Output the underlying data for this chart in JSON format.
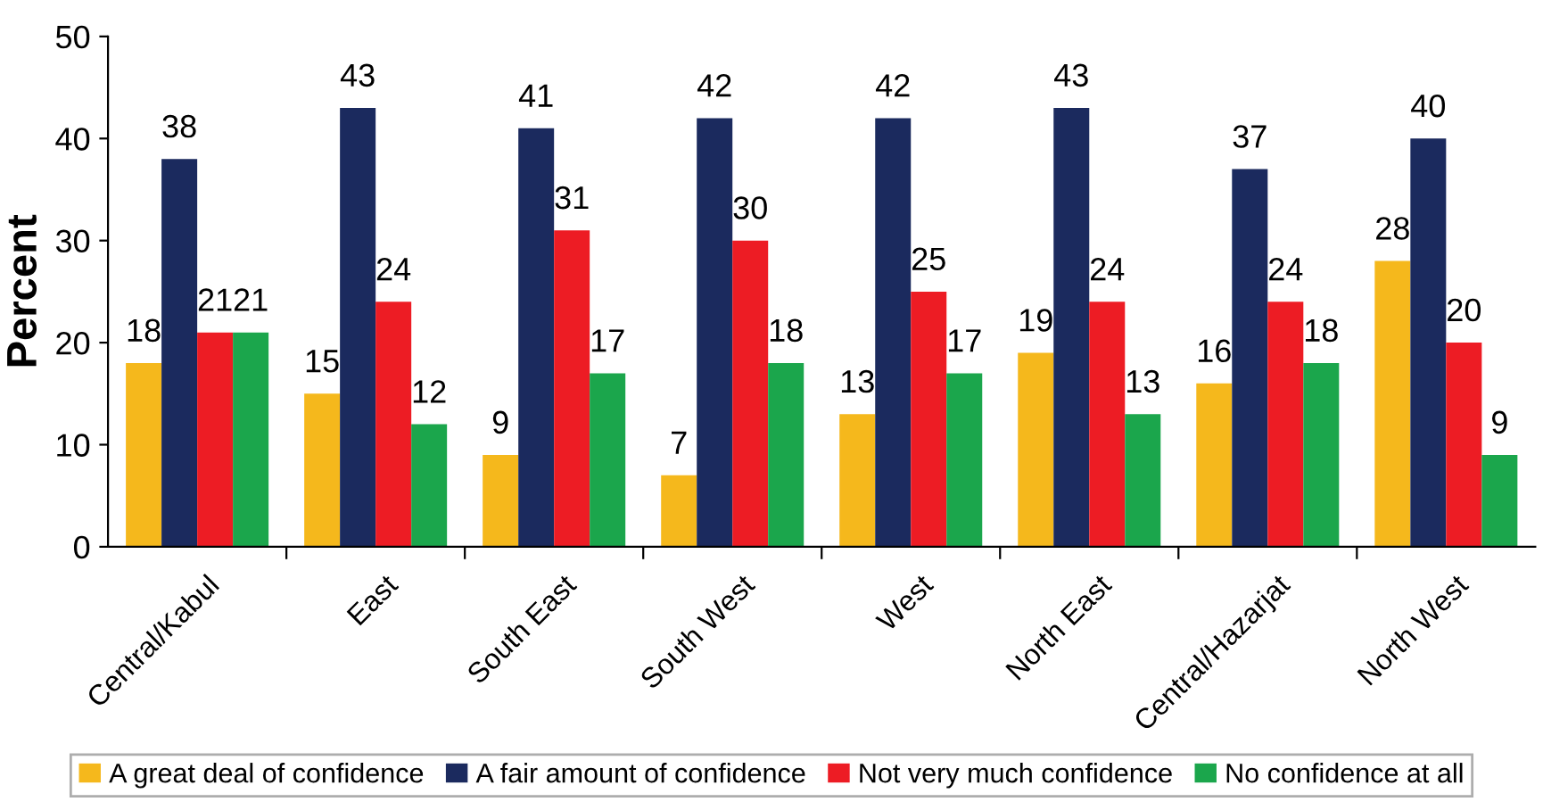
{
  "chart_data": {
    "type": "bar",
    "ylabel": "Percent",
    "categories": [
      "Central/Kabul",
      "East",
      "South East",
      "South West",
      "West",
      "North East",
      "Central/Hazarjat",
      "North West"
    ],
    "series": [
      {
        "name": "A great deal of confidence",
        "color": "#f5b81c",
        "values": [
          18,
          15,
          9,
          7,
          13,
          19,
          16,
          28
        ]
      },
      {
        "name": "A fair amount of confidence",
        "color": "#1b2a5e",
        "values": [
          38,
          43,
          41,
          42,
          42,
          43,
          37,
          40
        ]
      },
      {
        "name": "Not very much confidence",
        "color": "#ed1c24",
        "values": [
          21,
          24,
          31,
          30,
          25,
          24,
          24,
          20
        ]
      },
      {
        "name": "No confidence at all",
        "color": "#1ba64c",
        "values": [
          21,
          12,
          17,
          18,
          17,
          13,
          18,
          9
        ]
      }
    ],
    "ylim": [
      0,
      50
    ],
    "yticks": [
      0,
      10,
      20,
      30,
      40,
      50
    ],
    "data_labels": true,
    "grid": false,
    "legend": "bottom"
  }
}
